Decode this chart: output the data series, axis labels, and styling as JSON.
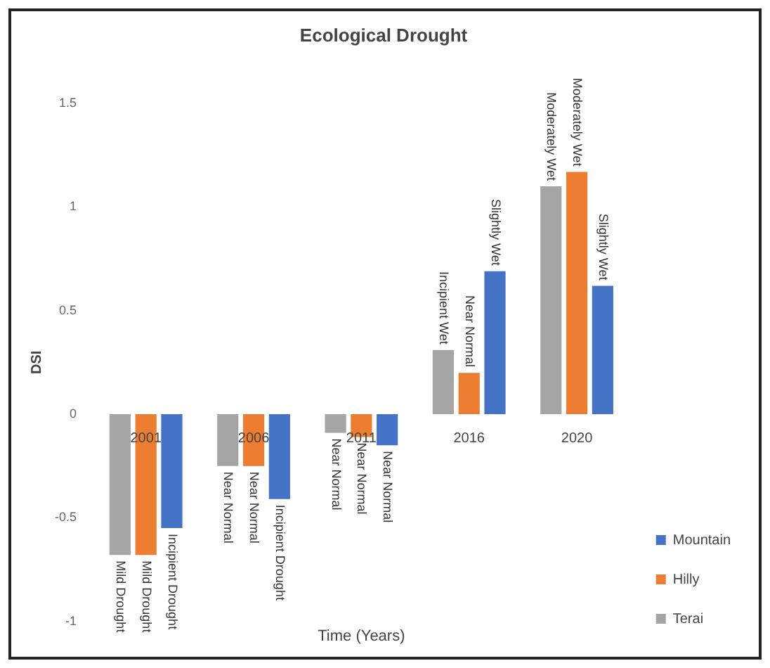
{
  "chart_data": {
    "type": "bar",
    "title": "Ecological Drought",
    "xlabel": "Time (Years)",
    "ylabel": "DSI",
    "categories": [
      "2001",
      "2006",
      "2011",
      "2016",
      "2020"
    ],
    "series": [
      {
        "name": "Terai",
        "color": "#a5a5a5",
        "values": [
          -0.68,
          -0.25,
          -0.09,
          0.31,
          1.1
        ],
        "value_labels": [
          "Mild Drought",
          "Near Normal",
          "Near Normal",
          "Incipient Wet",
          "Moderately Wet"
        ]
      },
      {
        "name": "Hilly",
        "color": "#ed7d31",
        "values": [
          -0.68,
          -0.25,
          -0.11,
          0.2,
          1.17
        ],
        "value_labels": [
          "Mild Drought",
          "Near Normal",
          "Near Normal",
          "Near Normal",
          "Moderately Wet"
        ]
      },
      {
        "name": "Mountain",
        "color": "#4472c4",
        "values": [
          -0.55,
          -0.41,
          -0.15,
          0.69,
          0.62
        ],
        "value_labels": [
          "Incipient Drought",
          "Incipient Drought",
          "Near Normal",
          "Slightly Wet",
          "Slightly Wet"
        ]
      }
    ],
    "ylim": [
      -1,
      1.5
    ],
    "yticks": [
      -1,
      -0.5,
      0,
      0.5,
      1,
      1.5
    ],
    "grid": false,
    "legend": "right"
  }
}
